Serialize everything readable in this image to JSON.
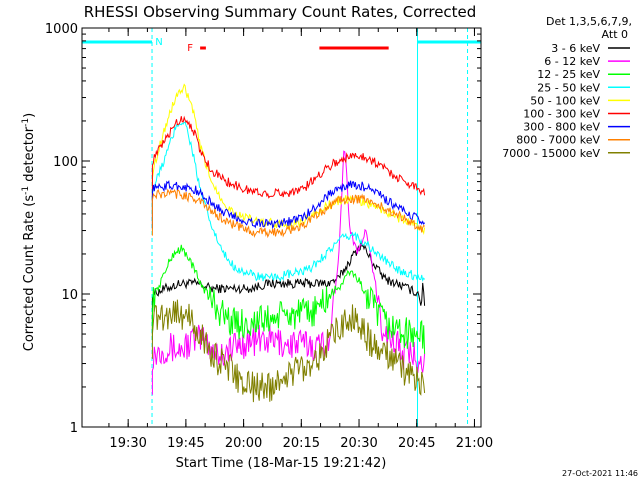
{
  "chart_data": {
    "type": "line",
    "title": "RHESSI Observing Summary Count Rates, Corrected",
    "xlabel": "Start Time (18-Mar-15 19:21:42)",
    "ylabel_main": "Corrected Count Rate (s",
    "ylabel_sup1": "-1",
    "ylabel_mid": " detector",
    "ylabel_sup2": "-1",
    "ylabel_end": ")",
    "yscale": "log",
    "ylim": [
      1,
      1000
    ],
    "xlim_minutes": [
      -3.7,
      100
    ],
    "x_ticks": [
      "19:30",
      "19:45",
      "20:00",
      "20:15",
      "20:30",
      "20:45",
      "21:00"
    ],
    "x_tick_minutes": [
      8.3,
      23.3,
      38.3,
      53.3,
      68.3,
      83.3,
      98.3
    ],
    "y_ticks": [
      "1",
      "10",
      "100",
      "1000"
    ],
    "y_tick_values": [
      1,
      10,
      100,
      1000
    ],
    "legend_header": [
      "Det 1,3,5,6,7,9,",
      "Att 0"
    ],
    "legend_position": "right",
    "series": [
      {
        "name": "3 - 6 keV",
        "color": "#000000",
        "x": [
          14.6,
          18,
          22,
          26,
          30,
          35,
          40,
          45,
          50,
          55,
          60,
          63,
          66,
          69,
          72,
          75,
          78,
          81,
          84,
          85.4
        ],
        "y": [
          10,
          11,
          12,
          12,
          11,
          11,
          11,
          12,
          12,
          12,
          12,
          13,
          18,
          24,
          17,
          13,
          12,
          11,
          10,
          9
        ]
      },
      {
        "name": "6 - 12 keV",
        "color": "#ff00ff",
        "x": [
          14.6,
          18,
          22,
          25,
          28,
          32,
          36,
          40,
          45,
          50,
          55,
          58,
          61,
          63,
          64.5,
          66,
          68,
          70,
          72,
          74,
          77,
          80,
          83,
          85.4
        ],
        "y": [
          3.5,
          4,
          3.8,
          4.5,
          4.5,
          3.5,
          4,
          4.5,
          4.5,
          4.2,
          4.2,
          4,
          5,
          20,
          140,
          30,
          20,
          30,
          15,
          6,
          4.5,
          3.5,
          3.5,
          3.2
        ]
      },
      {
        "name": "12 - 25 keV",
        "color": "#00ff00",
        "x": [
          14.6,
          18,
          20,
          22,
          24,
          26,
          28,
          30,
          33,
          36,
          40,
          45,
          50,
          55,
          58,
          61,
          64,
          66,
          68,
          70,
          72,
          75,
          78,
          81,
          84,
          85.4
        ],
        "y": [
          9,
          15,
          20,
          22,
          19,
          14,
          11,
          9,
          7,
          6,
          6,
          6.5,
          7,
          7,
          8,
          10,
          12,
          15,
          13,
          10,
          8,
          6,
          5.5,
          5,
          5,
          4.5
        ]
      },
      {
        "name": "25 - 50 keV",
        "color": "#00ffff",
        "x": [
          14.6,
          17,
          19,
          21,
          23,
          25,
          27,
          30,
          33,
          36,
          40,
          45,
          50,
          55,
          58,
          61,
          64,
          67,
          70,
          73,
          76,
          79,
          82,
          85.4
        ],
        "y": [
          60,
          90,
          130,
          190,
          200,
          120,
          60,
          32,
          20,
          16,
          14,
          13,
          14,
          15,
          18,
          22,
          26,
          28,
          24,
          20,
          17,
          15,
          14,
          13
        ]
      },
      {
        "name": "50 - 100 keV",
        "color": "#ffff00",
        "x": [
          14.6,
          17,
          19,
          21,
          23,
          25,
          27,
          30,
          34,
          38,
          42,
          46,
          50,
          54,
          57,
          60,
          63,
          66,
          69,
          72,
          75,
          78,
          81,
          84,
          85.4
        ],
        "y": [
          80,
          150,
          220,
          320,
          350,
          250,
          130,
          70,
          45,
          38,
          35,
          34,
          33,
          35,
          40,
          46,
          50,
          52,
          50,
          46,
          42,
          38,
          35,
          32,
          30
        ]
      },
      {
        "name": "100 - 300 keV",
        "color": "#ff0000",
        "x": [
          14.6,
          17,
          19,
          21,
          23,
          25,
          27,
          30,
          34,
          38,
          42,
          46,
          50,
          54,
          57,
          60,
          63,
          66,
          69,
          72,
          75,
          78,
          81,
          84,
          85.4
        ],
        "y": [
          100,
          130,
          160,
          200,
          210,
          180,
          120,
          85,
          70,
          62,
          58,
          57,
          58,
          62,
          75,
          90,
          100,
          108,
          110,
          100,
          88,
          76,
          68,
          62,
          58
        ]
      },
      {
        "name": "300 - 800 keV",
        "color": "#0000ff",
        "x": [
          14.6,
          18,
          22,
          26,
          30,
          34,
          38,
          42,
          46,
          50,
          54,
          57,
          60,
          63,
          66,
          69,
          72,
          75,
          78,
          81,
          84,
          85.4
        ],
        "y": [
          62,
          65,
          65,
          60,
          48,
          40,
          36,
          34,
          34,
          35,
          38,
          45,
          55,
          62,
          66,
          65,
          60,
          52,
          45,
          40,
          36,
          34
        ]
      },
      {
        "name": "800 - 7000 keV",
        "color": "#ff8000",
        "x": [
          14.6,
          18,
          22,
          26,
          30,
          34,
          38,
          42,
          46,
          50,
          54,
          57,
          60,
          63,
          66,
          69,
          72,
          75,
          78,
          81,
          84,
          85.4
        ],
        "y": [
          55,
          57,
          56,
          52,
          42,
          35,
          31,
          29,
          29,
          30,
          33,
          38,
          45,
          50,
          52,
          52,
          48,
          44,
          40,
          36,
          32,
          30
        ]
      },
      {
        "name": "7000 - 15000 keV",
        "color": "#808000",
        "x": [
          14.6,
          18,
          21,
          24,
          27,
          30,
          33,
          36,
          39,
          42,
          45,
          50,
          55,
          58,
          61,
          64,
          66,
          68,
          70,
          72,
          75,
          78,
          81,
          84,
          85.4
        ],
        "y": [
          6.5,
          7,
          7.5,
          6.5,
          5,
          3.5,
          3,
          2.5,
          2,
          2,
          2,
          2.5,
          3,
          3.5,
          4.5,
          6,
          7,
          6,
          5,
          4,
          3.5,
          3,
          2.5,
          2.2,
          2
        ]
      }
    ],
    "attenuator_segments_minutes": [
      [
        -3.7,
        14.5
      ],
      [
        83.5,
        100
      ]
    ],
    "saa_flag_label": "N",
    "saa_flag_minute": 14.5,
    "flare_flag_label": "F",
    "flare_flag_segments_minutes": [
      [
        27,
        28.5
      ],
      [
        58,
        76
      ]
    ],
    "event_lines_minutes": [
      {
        "m": 14.5,
        "style": "dashed"
      },
      {
        "m": 83.5,
        "style": "solid"
      },
      {
        "m": 96.5,
        "style": "dashed"
      },
      {
        "m": -3.7,
        "style": "solid"
      }
    ]
  },
  "footer": {
    "date": "27-Oct-2021 11:46"
  },
  "colors": {
    "background": "#ffffff",
    "attenuator": "#00ffff",
    "flare_flag": "#ff0000"
  }
}
